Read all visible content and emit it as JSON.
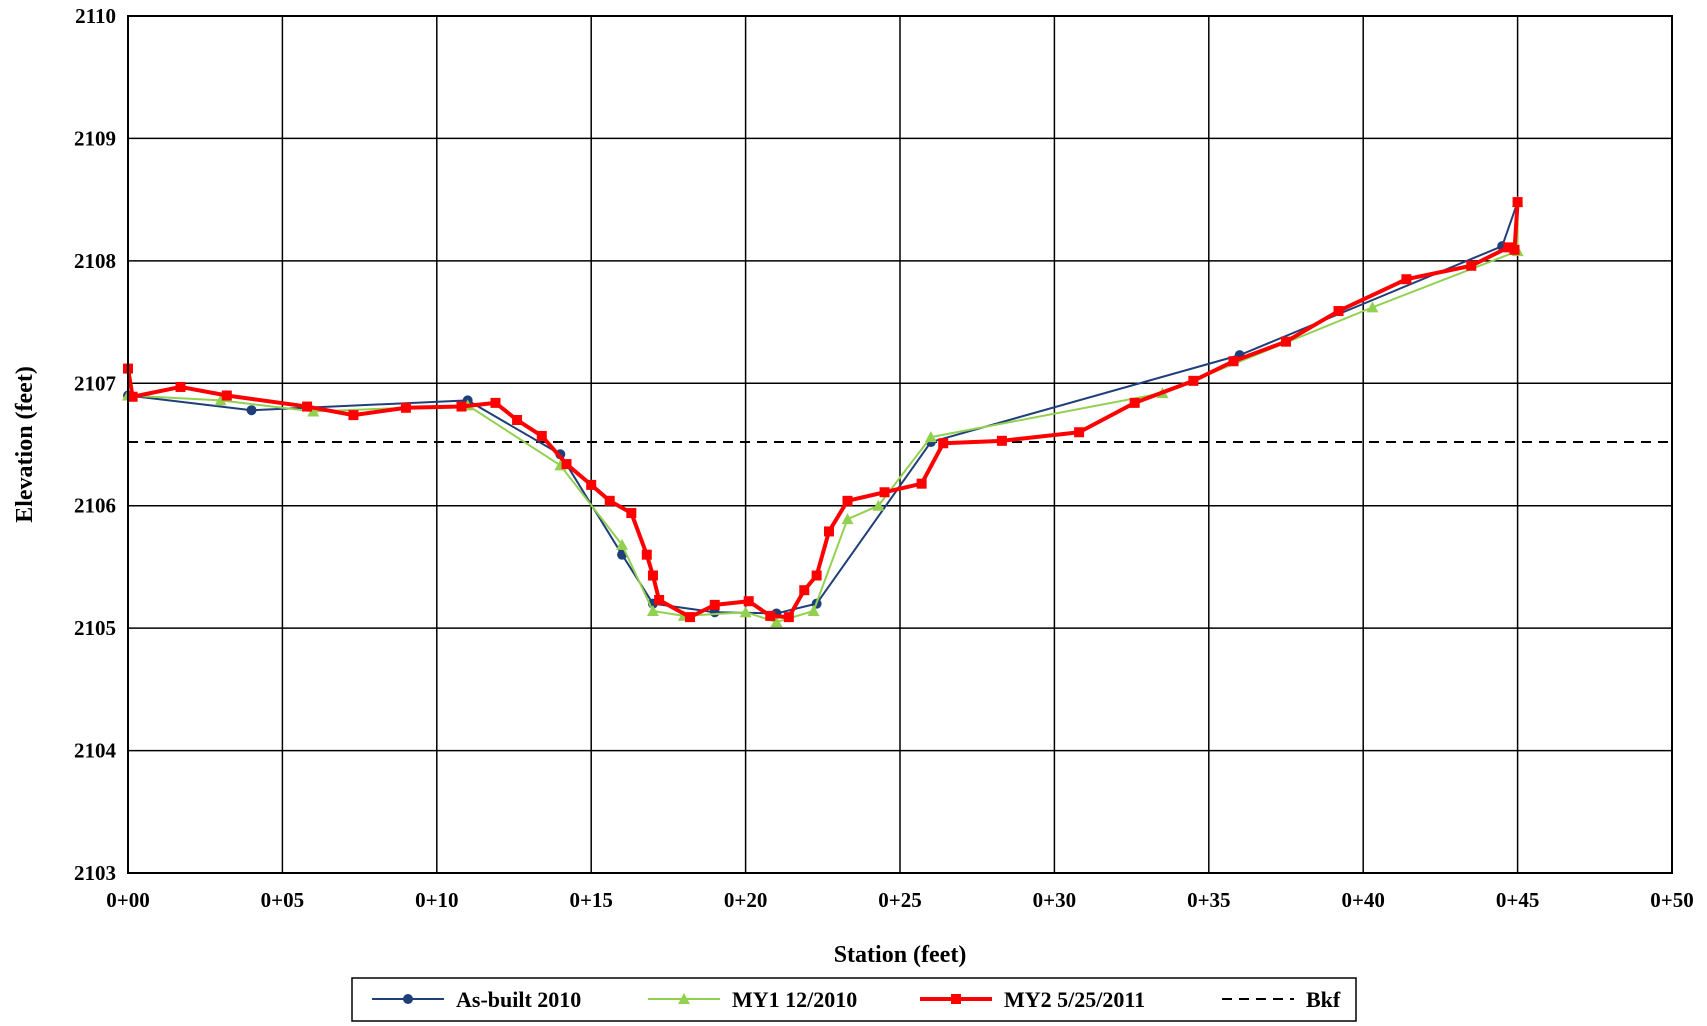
{
  "chart_data": {
    "type": "line",
    "title": "",
    "xlabel": "Station (feet)",
    "ylabel": "Elevation (feet)",
    "xlim": [
      0,
      50
    ],
    "ylim": [
      2103,
      2110
    ],
    "xticks": [
      0,
      5,
      10,
      15,
      20,
      25,
      30,
      35,
      40,
      45,
      50
    ],
    "xtick_labels": [
      "0+00",
      "0+05",
      "0+10",
      "0+15",
      "0+20",
      "0+25",
      "0+30",
      "0+35",
      "0+40",
      "0+45",
      "0+50"
    ],
    "yticks": [
      2103,
      2104,
      2105,
      2106,
      2107,
      2108,
      2109,
      2110
    ],
    "ytick_labels": [
      "2103",
      "2104",
      "2105",
      "2106",
      "2107",
      "2108",
      "2109",
      "2110"
    ],
    "grid": true,
    "legend_position": "bottom",
    "series": [
      {
        "name": "As-built 2010",
        "color": "#1f3f7a",
        "marker": "circle",
        "x": [
          0.0,
          4.0,
          11.0,
          14.0,
          16.0,
          17.0,
          19.0,
          21.0,
          22.3,
          26.0,
          36.0,
          44.5,
          45.0
        ],
        "y": [
          2106.9,
          2106.78,
          2106.86,
          2106.42,
          2105.6,
          2105.2,
          2105.13,
          2105.12,
          2105.2,
          2106.52,
          2107.23,
          2108.12,
          2108.48
        ]
      },
      {
        "name": "MY1 12/2010",
        "color": "#92d050",
        "marker": "triangle",
        "x": [
          0.0,
          3.0,
          6.0,
          11.0,
          14.0,
          16.0,
          17.0,
          18.0,
          20.0,
          21.0,
          22.2,
          23.3,
          24.3,
          26.0,
          33.5,
          40.3,
          45.0,
          45.0
        ],
        "y": [
          2106.9,
          2106.86,
          2106.77,
          2106.82,
          2106.33,
          2105.68,
          2105.14,
          2105.1,
          2105.13,
          2105.05,
          2105.14,
          2105.89,
          2106.0,
          2106.56,
          2106.92,
          2107.62,
          2108.08,
          2108.48
        ]
      },
      {
        "name": "MY2 5/25/2011",
        "color": "#ff0000",
        "marker": "square",
        "x": [
          0.0,
          0.15,
          1.7,
          3.2,
          5.8,
          7.3,
          9.0,
          10.8,
          11.9,
          12.6,
          13.4,
          14.2,
          15.0,
          15.6,
          16.3,
          16.8,
          17.0,
          17.2,
          18.2,
          19.0,
          20.1,
          20.8,
          21.4,
          21.9,
          22.3,
          22.7,
          23.3,
          24.5,
          25.7,
          26.4,
          28.3,
          30.8,
          32.6,
          34.5,
          35.8,
          37.5,
          39.2,
          41.4,
          43.5,
          44.7,
          44.9,
          45.0
        ],
        "y": [
          2107.12,
          2106.89,
          2106.97,
          2106.9,
          2106.81,
          2106.74,
          2106.8,
          2106.81,
          2106.84,
          2106.7,
          2106.57,
          2106.34,
          2106.17,
          2106.04,
          2105.94,
          2105.6,
          2105.43,
          2105.23,
          2105.09,
          2105.19,
          2105.22,
          2105.1,
          2105.09,
          2105.31,
          2105.43,
          2105.79,
          2106.04,
          2106.11,
          2106.18,
          2106.51,
          2106.53,
          2106.6,
          2106.84,
          2107.02,
          2107.18,
          2107.34,
          2107.59,
          2107.85,
          2107.96,
          2108.11,
          2108.09,
          2108.48
        ]
      },
      {
        "name": "Bkf",
        "color": "#000000",
        "dashed": true,
        "x": [
          0,
          50
        ],
        "y": [
          2106.52,
          2106.52
        ]
      }
    ]
  }
}
